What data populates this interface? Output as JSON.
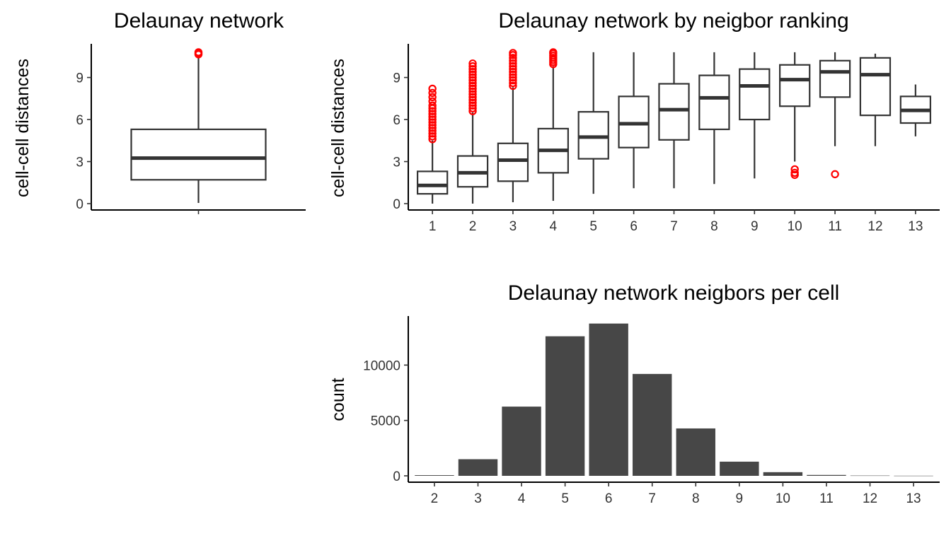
{
  "chart_data": [
    {
      "type": "boxplot",
      "title": "Delaunay network",
      "xlabel": "",
      "ylabel": "cell-cell distances",
      "ylim": [
        0,
        11.3
      ],
      "yticks": [
        0,
        3,
        6,
        9
      ],
      "outlier_color": "#ff0000",
      "boxes": [
        {
          "category": "",
          "min": 0.05,
          "q1": 1.7,
          "median": 3.25,
          "q3": 5.3,
          "max": 10.55,
          "outliers": [
            10.65,
            10.72,
            10.8
          ]
        }
      ]
    },
    {
      "type": "boxplot",
      "title": "Delaunay network by neigbor ranking",
      "xlabel": "",
      "ylabel": "cell-cell distances",
      "ylim": [
        0,
        11.3
      ],
      "yticks": [
        0,
        3,
        6,
        9
      ],
      "outlier_color": "#ff0000",
      "categories": [
        "1",
        "2",
        "3",
        "4",
        "5",
        "6",
        "7",
        "8",
        "9",
        "10",
        "11",
        "12",
        "13"
      ],
      "boxes": [
        {
          "category": "1",
          "min": 0.0,
          "q1": 0.7,
          "median": 1.3,
          "q3": 2.3,
          "max": 4.5,
          "outliers": [
            4.6,
            4.8,
            5.0,
            5.2,
            5.4,
            5.6,
            5.8,
            6.0,
            6.2,
            6.4,
            6.6,
            6.8,
            7.0,
            7.3,
            7.6,
            7.9,
            8.2
          ]
        },
        {
          "category": "2",
          "min": 0.0,
          "q1": 1.2,
          "median": 2.2,
          "q3": 3.4,
          "max": 6.5,
          "outliers": [
            6.6,
            6.8,
            7.0,
            7.2,
            7.4,
            7.6,
            7.8,
            8.0,
            8.2,
            8.4,
            8.6,
            8.8,
            9.0,
            9.2,
            9.4,
            9.6,
            9.8,
            10.0
          ]
        },
        {
          "category": "3",
          "min": 0.1,
          "q1": 1.6,
          "median": 3.1,
          "q3": 4.3,
          "max": 8.3,
          "outliers": [
            8.4,
            8.6,
            8.8,
            9.0,
            9.2,
            9.4,
            9.6,
            9.8,
            10.0,
            10.2,
            10.4,
            10.6,
            10.75
          ]
        },
        {
          "category": "4",
          "min": 0.2,
          "q1": 2.2,
          "median": 3.8,
          "q3": 5.35,
          "max": 9.8,
          "outliers": [
            9.95,
            10.1,
            10.25,
            10.4,
            10.55,
            10.7,
            10.8
          ]
        },
        {
          "category": "5",
          "min": 0.7,
          "q1": 3.2,
          "median": 4.75,
          "q3": 6.55,
          "max": 10.8,
          "outliers": []
        },
        {
          "category": "6",
          "min": 1.1,
          "q1": 4.0,
          "median": 5.7,
          "q3": 7.65,
          "max": 10.8,
          "outliers": []
        },
        {
          "category": "7",
          "min": 1.1,
          "q1": 4.55,
          "median": 6.7,
          "q3": 8.55,
          "max": 10.8,
          "outliers": []
        },
        {
          "category": "8",
          "min": 1.4,
          "q1": 5.3,
          "median": 7.55,
          "q3": 9.15,
          "max": 10.8,
          "outliers": []
        },
        {
          "category": "9",
          "min": 1.8,
          "q1": 6.0,
          "median": 8.4,
          "q3": 9.6,
          "max": 10.8,
          "outliers": []
        },
        {
          "category": "10",
          "min": 3.0,
          "q1": 6.95,
          "median": 8.85,
          "q3": 9.9,
          "max": 10.8,
          "outliers": [
            2.05,
            2.2,
            2.45
          ]
        },
        {
          "category": "11",
          "min": 4.1,
          "q1": 7.6,
          "median": 9.4,
          "q3": 10.2,
          "max": 10.8,
          "outliers": [
            2.1
          ]
        },
        {
          "category": "12",
          "min": 4.1,
          "q1": 6.3,
          "median": 9.2,
          "q3": 10.4,
          "max": 10.7,
          "outliers": []
        },
        {
          "category": "13",
          "min": 4.8,
          "q1": 5.75,
          "median": 6.65,
          "q3": 7.65,
          "max": 8.5,
          "outliers": []
        }
      ]
    },
    {
      "type": "bar",
      "title": "Delaunay network neigbors per cell",
      "xlabel": "",
      "ylabel": "count",
      "ylim": [
        0,
        14300
      ],
      "yticks": [
        0,
        5000,
        10000
      ],
      "bar_color": "#474747",
      "categories": [
        "2",
        "3",
        "4",
        "5",
        "6",
        "7",
        "8",
        "9",
        "10",
        "11",
        "12",
        "13"
      ],
      "values": [
        60,
        1500,
        6250,
        12600,
        13750,
        9200,
        4280,
        1280,
        330,
        80,
        25,
        10
      ]
    }
  ]
}
